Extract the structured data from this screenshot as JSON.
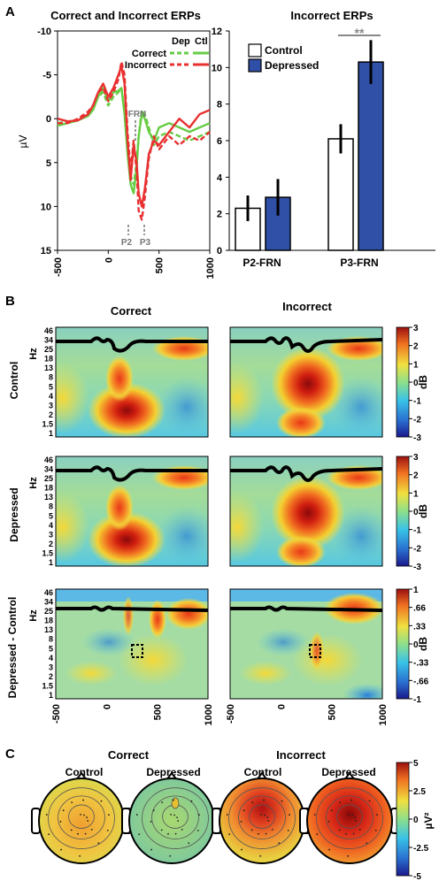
{
  "panels": {
    "a": {
      "letter": "A",
      "erp": {
        "title": "Correct and Incorrect ERPs",
        "ylabel": "µV",
        "yticks": [
          "-10",
          "-5",
          "0",
          "5",
          "10",
          "15"
        ],
        "xticks": [
          "-500",
          "0",
          "500",
          "1000"
        ],
        "legend": {
          "col_dep": "Dep",
          "col_ctl": "Ctl",
          "row_correct": "Correct",
          "row_incorrect": "Incorrect",
          "correct_color": "#66cc44",
          "incorrect_color": "#e83030"
        },
        "markers": {
          "frn": "FRN",
          "p2": "P2",
          "p3": "P3"
        }
      },
      "bars": {
        "title": "Incorrect ERPs",
        "significance": "**",
        "legend": {
          "control": "Control",
          "depressed": "Depressed"
        },
        "colors": {
          "control": "#ffffff",
          "depressed": "#3050a8"
        },
        "yticks": [
          "0",
          "2",
          "4",
          "6",
          "8",
          "10",
          "12"
        ],
        "groups": [
          "P2-FRN",
          "P3-FRN"
        ]
      }
    },
    "b": {
      "letter": "B",
      "col_titles": [
        "Correct",
        "Incorrect"
      ],
      "row_labels": [
        "Control",
        "Depressed",
        "Depressed - Control"
      ],
      "hz_label": "Hz",
      "hz_ticks": [
        "46",
        "34",
        "25",
        "18",
        "13",
        "8",
        "5",
        "4",
        "3",
        "2",
        "1.5",
        "1"
      ],
      "time_ticks": [
        "-500",
        "0",
        "500",
        "1000"
      ],
      "colorbar_unit": "dB",
      "colorbar_ticks_main": [
        "3",
        "2",
        "1",
        "0",
        "-1",
        "-2",
        "-3"
      ],
      "colorbar_ticks_diff": [
        "1",
        ".66",
        ".33",
        "0",
        "-.33",
        "-.66",
        "-1"
      ]
    },
    "c": {
      "letter": "C",
      "group_titles": [
        "Correct",
        "Incorrect"
      ],
      "map_titles": [
        "Control",
        "Depressed",
        "Control",
        "Depressed"
      ],
      "colorbar_unit": "µV²",
      "colorbar_ticks": [
        "5",
        "2.5",
        "0",
        "-2.5",
        "-5"
      ]
    }
  },
  "chart_data": [
    {
      "type": "line",
      "title": "Correct and Incorrect ERPs",
      "xlabel": "",
      "ylabel": "µV",
      "xlim": [
        -500,
        1000
      ],
      "ylim": [
        15,
        -10
      ],
      "x": [
        -500,
        -400,
        -300,
        -200,
        -150,
        -100,
        -50,
        0,
        50,
        100,
        130,
        160,
        190,
        220,
        250,
        280,
        300,
        330,
        360,
        400,
        450,
        500,
        600,
        700,
        800,
        900,
        1000
      ],
      "series": [
        {
          "name": "Correct Dep",
          "color": "#66cc44",
          "dash": true,
          "values": [
            0.5,
            0.3,
            0.2,
            -0.5,
            -1.0,
            -2.5,
            -3.0,
            -1.5,
            -2.5,
            -3.0,
            -3.5,
            -1.0,
            3.0,
            6.5,
            7.5,
            5.0,
            2.0,
            -1.0,
            -0.5,
            1.0,
            3.0,
            2.0,
            1.5,
            2.0,
            2.5,
            2.0,
            1.5
          ]
        },
        {
          "name": "Correct Ctl",
          "color": "#66cc44",
          "dash": false,
          "values": [
            0.8,
            0.5,
            0.2,
            -0.3,
            -1.0,
            -2.5,
            -3.5,
            -2.0,
            -3.0,
            -3.2,
            -3.5,
            -0.5,
            4.0,
            7.5,
            8.5,
            5.5,
            2.0,
            -0.5,
            0.0,
            1.5,
            2.5,
            1.0,
            0.5,
            1.0,
            1.5,
            1.0,
            0.5
          ]
        },
        {
          "name": "Incorrect Dep",
          "color": "#e83030",
          "dash": true,
          "values": [
            0.5,
            0.5,
            0.0,
            -0.8,
            -1.5,
            -3.0,
            -3.5,
            -2.0,
            -3.0,
            -4.5,
            -6.5,
            -5.0,
            1.5,
            6.0,
            2.5,
            6.0,
            10.5,
            11.5,
            9.0,
            4.5,
            2.0,
            3.5,
            2.0,
            3.0,
            2.0,
            2.5,
            1.5
          ]
        },
        {
          "name": "Incorrect Ctl",
          "color": "#e83030",
          "dash": false,
          "values": [
            0.0,
            0.3,
            0.2,
            -0.5,
            -1.5,
            -3.0,
            -4.0,
            -2.5,
            -3.5,
            -5.0,
            -6.0,
            -4.0,
            2.5,
            7.0,
            3.0,
            5.0,
            8.5,
            10.0,
            8.0,
            4.0,
            2.5,
            3.0,
            1.5,
            0.0,
            1.0,
            -0.5,
            -1.0
          ]
        }
      ]
    },
    {
      "type": "bar",
      "title": "Incorrect ERPs",
      "categories": [
        "P2-FRN",
        "P3-FRN"
      ],
      "ylim": [
        0,
        12
      ],
      "series": [
        {
          "name": "Control",
          "values": [
            2.3,
            6.1
          ],
          "errors": [
            0.7,
            0.8
          ]
        },
        {
          "name": "Depressed",
          "values": [
            2.9,
            10.3
          ],
          "errors": [
            1.0,
            1.2
          ]
        }
      ]
    },
    {
      "type": "heatmap",
      "xlim": [
        -500,
        1000
      ],
      "ylabel": "Hz",
      "rows": [
        "Control",
        "Depressed",
        "Depressed - Control"
      ],
      "cols": [
        "Correct",
        "Incorrect"
      ],
      "clim_main": [
        -3,
        3
      ],
      "clim_diff": [
        -1,
        1
      ]
    }
  ]
}
